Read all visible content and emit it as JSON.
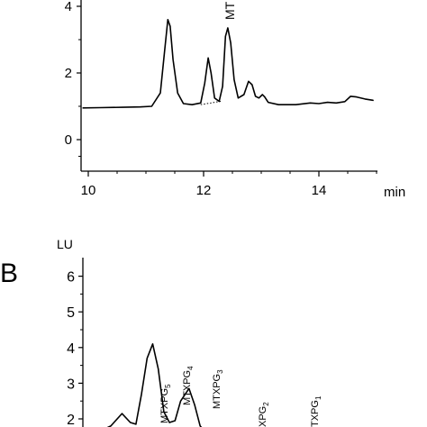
{
  "chart_data": [
    {
      "type": "line",
      "panel_label": "",
      "xlabel": "min",
      "ylabel": "",
      "xlim": [
        9.9,
        15.1
      ],
      "ylim": [
        -0.9,
        4.3
      ],
      "x_ticks": [
        10,
        12,
        14
      ],
      "x_minor_ticks": [
        10.5,
        11,
        11.5,
        12.5,
        13,
        13.5,
        14.5,
        15
      ],
      "y_ticks": [
        0,
        2,
        4
      ],
      "y_minor_ticks": [
        -0.5,
        1,
        3
      ],
      "grid": false,
      "series": [
        {
          "x": [
            9.9,
            10.2,
            10.6,
            10.9,
            11.1,
            11.25,
            11.32,
            11.38,
            11.42,
            11.47,
            11.55,
            11.65,
            11.8,
            11.95,
            12.02,
            12.08,
            12.13,
            12.19,
            12.27,
            12.33,
            12.38,
            12.42,
            12.47,
            12.53,
            12.6,
            12.7,
            12.78,
            12.84,
            12.9,
            12.96,
            13.02,
            13.06,
            13.12,
            13.3,
            13.6,
            13.85,
            14.0,
            14.15,
            14.3,
            14.45,
            14.55,
            14.65,
            14.8,
            14.95,
            15.05
          ],
          "y": [
            0.95,
            0.96,
            0.97,
            0.98,
            1.0,
            1.4,
            2.6,
            3.6,
            3.4,
            2.4,
            1.4,
            1.08,
            1.05,
            1.1,
            1.7,
            2.45,
            2.0,
            1.25,
            1.15,
            1.6,
            3.1,
            3.35,
            2.9,
            1.8,
            1.25,
            1.35,
            1.75,
            1.65,
            1.3,
            1.25,
            1.35,
            1.28,
            1.12,
            1.05,
            1.05,
            1.1,
            1.08,
            1.12,
            1.1,
            1.14,
            1.3,
            1.28,
            1.22,
            1.18,
            1.16
          ]
        }
      ],
      "baseline_dotted": {
        "x": [
          11.95,
          12.3
        ],
        "y": [
          1.05,
          1.15
        ]
      },
      "annotations": [
        {
          "text": "MT",
          "x": 12.45
        }
      ]
    },
    {
      "type": "line",
      "panel_label": "B",
      "ylabel": "LU",
      "xlabel": "",
      "ylim": [
        1.5,
        6.2
      ],
      "y_ticks": [
        2,
        3,
        4,
        5,
        6
      ],
      "y_minor_ticks": [
        2.5,
        3.5,
        4.5,
        5.5
      ],
      "grid": false,
      "series": [
        {
          "t": [
            0,
            0.05,
            0.1,
            0.14,
            0.17,
            0.19,
            0.21,
            0.23,
            0.25,
            0.27,
            0.29,
            0.31,
            0.33,
            0.35,
            0.38,
            0.4,
            0.42,
            0.44,
            0.46,
            0.49,
            0.52
          ],
          "y": [
            1.5,
            1.55,
            1.8,
            2.15,
            1.9,
            1.85,
            2.7,
            3.7,
            4.1,
            3.4,
            2.2,
            1.9,
            1.95,
            2.5,
            2.85,
            2.4,
            1.8,
            1.6,
            1.55,
            1.5,
            1.5
          ]
        }
      ],
      "annotations": [
        {
          "base": "MTXPG",
          "sub": "5"
        },
        {
          "base": "MTXPG",
          "sub": "4"
        },
        {
          "base": "MTXPG",
          "sub": "3"
        },
        {
          "base": "XPG",
          "sub": "2"
        },
        {
          "base": "TXPG",
          "sub": "1"
        }
      ]
    }
  ]
}
